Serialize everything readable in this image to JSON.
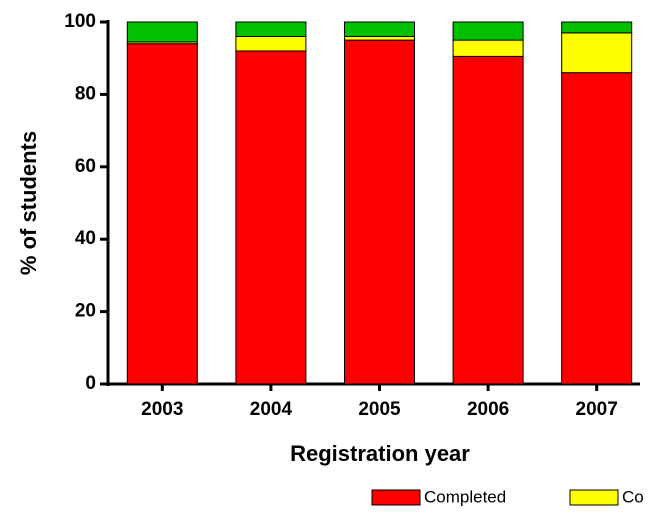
{
  "chart_data": {
    "type": "stacked_bar",
    "x_label": "Registration year",
    "y_label": "% of students",
    "categories": [
      "2003",
      "2004",
      "2005",
      "2006",
      "2007"
    ],
    "series": [
      {
        "name": "Completed",
        "color": "#ff0000",
        "values": [
          94,
          92,
          95,
          90.5,
          86
        ]
      },
      {
        "name": "Co",
        "color": "#ffff00",
        "values": [
          0.5,
          4,
          1,
          4.5,
          11
        ]
      },
      {
        "color": "#00c000",
        "values": [
          5.5,
          4,
          4,
          5,
          3
        ]
      }
    ],
    "ylim": [
      0,
      100
    ],
    "yticks": [
      0,
      20,
      40,
      60,
      80,
      100
    ]
  }
}
